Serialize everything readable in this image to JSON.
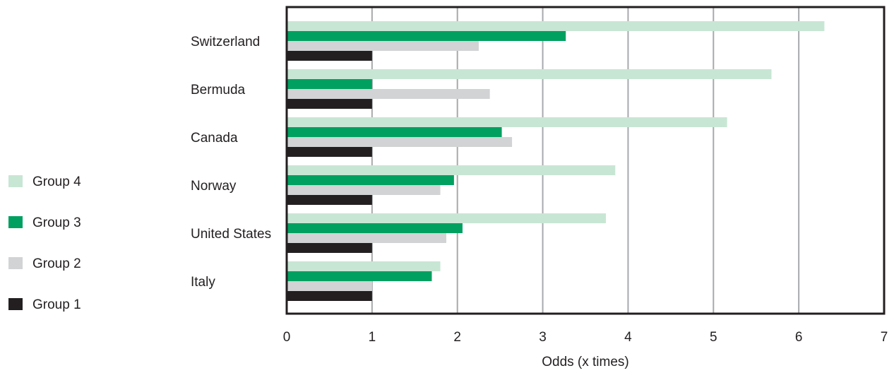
{
  "chart_data": {
    "type": "bar",
    "orientation": "horizontal",
    "xlabel": "Odds (x times)",
    "ylabel": "",
    "xlim": [
      0,
      7
    ],
    "xticks": [
      0,
      1,
      2,
      3,
      4,
      5,
      6,
      7
    ],
    "grid": "vertical",
    "legend_position": "left",
    "categories": [
      "Switzerland",
      "Bermuda",
      "Canada",
      "Norway",
      "United States",
      "Italy"
    ],
    "series": [
      {
        "name": "Group 4",
        "color": "#c8e6d4",
        "values": [
          6.3,
          5.68,
          5.16,
          3.85,
          3.74,
          1.8
        ]
      },
      {
        "name": "Group 3",
        "color": "#00a060",
        "values": [
          3.27,
          1.0,
          2.52,
          1.96,
          2.06,
          1.7
        ]
      },
      {
        "name": "Group 2",
        "color": "#d1d3d4",
        "values": [
          2.25,
          2.38,
          2.64,
          1.8,
          1.87,
          1.0
        ]
      },
      {
        "name": "Group 1",
        "color": "#231f20",
        "values": [
          1.0,
          1.0,
          1.0,
          1.0,
          1.0,
          1.0
        ]
      }
    ],
    "legend_order": [
      "Group 4",
      "Group 3",
      "Group 2",
      "Group 1"
    ],
    "colors": {
      "gridline": "#a7a9ac",
      "axis": "#231f20",
      "text": "#231f20"
    }
  }
}
